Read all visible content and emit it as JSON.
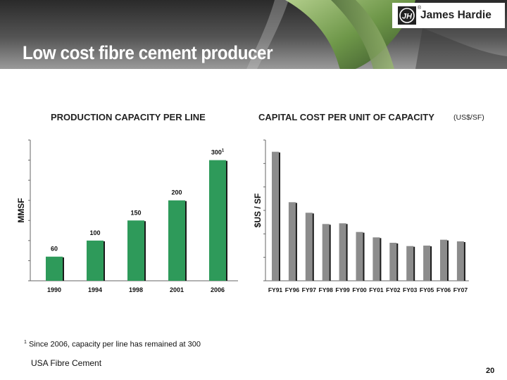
{
  "brand": {
    "name": "James Hardie",
    "registered": "®",
    "mark": "JH"
  },
  "slide": {
    "title": "Low cost fibre cement producer",
    "footnote_marker": "1",
    "footnote_text": "Since 2006, capacity per line has remained at 300",
    "section_label": "USA Fibre Cement",
    "page_number": "20"
  },
  "colors": {
    "green_bar": "#2e9a5a",
    "gray_bar": "#8c8c8c"
  },
  "chart_data": [
    {
      "type": "bar",
      "title": "PRODUCTION CAPACITY PER LINE",
      "ylabel": "MMSF",
      "xlabel": "",
      "categories": [
        "1990",
        "1994",
        "1998",
        "2001",
        "2006"
      ],
      "values": [
        60,
        100,
        150,
        200,
        300
      ],
      "data_labels": [
        "60",
        "100",
        "150",
        "200",
        "300"
      ],
      "data_label_superscripts": [
        "",
        "",
        "",
        "",
        "1"
      ],
      "ylim": [
        0,
        350
      ],
      "ytick_step": 50,
      "grid": false,
      "color": "#2e9a5a"
    },
    {
      "type": "bar",
      "title": "CAPITAL COST PER UNIT OF CAPACITY",
      "unit_note": "(US$/SF)",
      "ylabel": "$US / SF",
      "xlabel": "",
      "categories": [
        "FY91",
        "FY96",
        "FY97",
        "FY98",
        "FY99",
        "FY00",
        "FY01",
        "FY02",
        "FY03",
        "FY05",
        "FY06",
        "FY07"
      ],
      "values": [
        5.5,
        3.35,
        2.9,
        2.42,
        2.45,
        2.08,
        1.85,
        1.62,
        1.48,
        1.5,
        1.75,
        1.68
      ],
      "ylim": [
        0,
        6
      ],
      "ytick_step": 1,
      "grid": false,
      "color": "#8c8c8c"
    }
  ]
}
